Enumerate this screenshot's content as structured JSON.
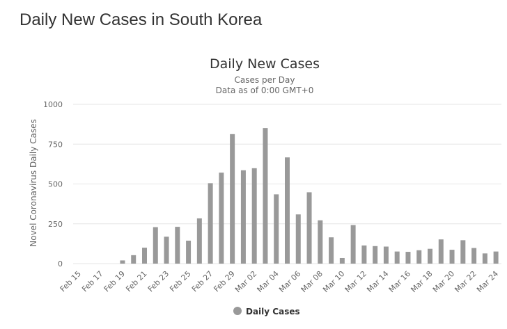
{
  "page": {
    "heading": "Daily New Cases in South Korea"
  },
  "chart_data": {
    "type": "bar",
    "title": "Daily New Cases",
    "subtitle_line1": "Cases per Day",
    "subtitle_line2": "Data as of 0:00 GMT+0",
    "ylabel": "Novel Coronavirus Daily Cases",
    "ylim": [
      0,
      1000
    ],
    "yticks": [
      "0",
      "250",
      "500",
      "750",
      "1000"
    ],
    "ytick_values": [
      0,
      250,
      500,
      750,
      1000
    ],
    "grid": true,
    "legend_position": "bottom-center",
    "bar_color": "#999999",
    "categories": [
      "Feb 15",
      "Feb 16",
      "Feb 17",
      "Feb 18",
      "Feb 19",
      "Feb 20",
      "Feb 21",
      "Feb 22",
      "Feb 23",
      "Feb 24",
      "Feb 25",
      "Feb 26",
      "Feb 27",
      "Feb 28",
      "Feb 29",
      "Mar 01",
      "Mar 02",
      "Mar 03",
      "Mar 04",
      "Mar 05",
      "Mar 06",
      "Mar 07",
      "Mar 08",
      "Mar 09",
      "Mar 10",
      "Mar 11",
      "Mar 12",
      "Mar 13",
      "Mar 14",
      "Mar 15",
      "Mar 16",
      "Mar 17",
      "Mar 18",
      "Mar 19",
      "Mar 20",
      "Mar 21",
      "Mar 22",
      "Mar 23",
      "Mar 24"
    ],
    "xtick_labels": [
      "Feb 15",
      "Feb 17",
      "Feb 19",
      "Feb 21",
      "Feb 23",
      "Feb 25",
      "Feb 27",
      "Feb 29",
      "Mar 02",
      "Mar 04",
      "Mar 06",
      "Mar 08",
      "Mar 10",
      "Mar 12",
      "Mar 14",
      "Mar 16",
      "Mar 18",
      "Mar 20",
      "Mar 22",
      "Mar 24"
    ],
    "series": [
      {
        "name": "Daily Cases",
        "values": [
          0,
          0,
          0,
          0,
          20,
          53,
          100,
          229,
          169,
          231,
          144,
          284,
          505,
          571,
          813,
          586,
          599,
          851,
          435,
          667,
          309,
          448,
          272,
          165,
          35,
          242,
          114,
          110,
          107,
          76,
          74,
          84,
          93,
          152,
          87,
          147,
          98,
          64,
          76
        ]
      }
    ]
  }
}
